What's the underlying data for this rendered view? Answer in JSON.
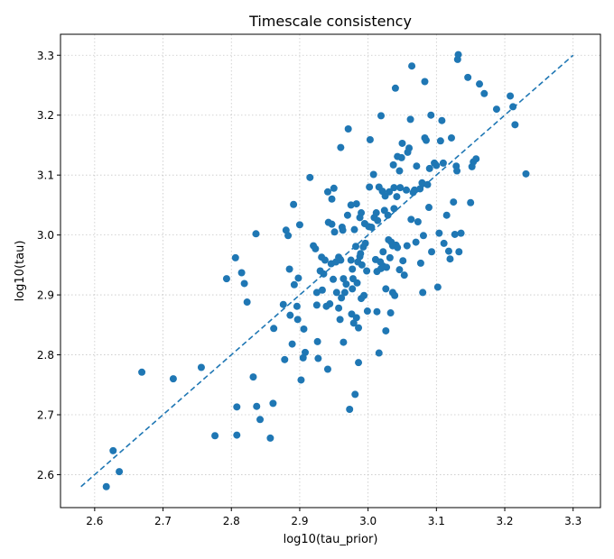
{
  "chart_data": {
    "type": "scatter",
    "title": "Timescale consistency",
    "xlabel": "log10(tau_prior)",
    "ylabel": "log10(tau)",
    "xlim": [
      2.55,
      3.34
    ],
    "ylim": [
      2.545,
      3.335
    ],
    "x_ticks": [
      "2.6",
      "2.7",
      "2.8",
      "2.9",
      "3.0",
      "3.1",
      "3.2",
      "3.3"
    ],
    "y_ticks": [
      "2.6",
      "2.7",
      "2.8",
      "2.9",
      "3.0",
      "3.1",
      "3.2",
      "3.3"
    ],
    "grid": true,
    "marker_color": "#1f77b4",
    "reference_line": {
      "x": [
        2.58,
        3.3
      ],
      "y": [
        2.58,
        3.3
      ],
      "style": "dashed",
      "color": "#1f77b4"
    },
    "points": [
      [
        2.617,
        2.58
      ],
      [
        2.627,
        2.64
      ],
      [
        2.636,
        2.605
      ],
      [
        2.669,
        2.771
      ],
      [
        2.715,
        2.76
      ],
      [
        2.756,
        2.779
      ],
      [
        2.776,
        2.665
      ],
      [
        2.793,
        2.927
      ],
      [
        2.806,
        2.962
      ],
      [
        2.808,
        2.713
      ],
      [
        2.808,
        2.666
      ],
      [
        2.815,
        2.937
      ],
      [
        2.819,
        2.919
      ],
      [
        2.823,
        2.888
      ],
      [
        2.832,
        2.763
      ],
      [
        2.836,
        3.002
      ],
      [
        2.837,
        2.714
      ],
      [
        2.842,
        2.692
      ],
      [
        2.857,
        2.661
      ],
      [
        2.861,
        2.719
      ],
      [
        2.862,
        2.844
      ],
      [
        2.876,
        2.884
      ],
      [
        2.878,
        2.792
      ],
      [
        2.88,
        3.008
      ],
      [
        2.883,
        2.999
      ],
      [
        2.885,
        2.943
      ],
      [
        2.886,
        2.866
      ],
      [
        2.889,
        2.818
      ],
      [
        2.891,
        3.051
      ],
      [
        2.892,
        2.917
      ],
      [
        2.896,
        2.881
      ],
      [
        2.897,
        2.859
      ],
      [
        2.898,
        2.928
      ],
      [
        2.9,
        3.017
      ],
      [
        2.902,
        2.758
      ],
      [
        2.905,
        2.795
      ],
      [
        2.906,
        2.843
      ],
      [
        2.908,
        2.804
      ],
      [
        2.915,
        3.096
      ],
      [
        2.92,
        2.982
      ],
      [
        2.923,
        2.977
      ],
      [
        2.925,
        2.904
      ],
      [
        2.925,
        2.883
      ],
      [
        2.926,
        2.822
      ],
      [
        2.927,
        2.794
      ],
      [
        2.93,
        2.94
      ],
      [
        2.932,
        2.963
      ],
      [
        2.933,
        2.908
      ],
      [
        2.935,
        2.935
      ],
      [
        2.937,
        2.958
      ],
      [
        2.939,
        2.881
      ],
      [
        2.941,
        3.072
      ],
      [
        2.941,
        2.776
      ],
      [
        2.942,
        3.021
      ],
      [
        2.944,
        2.885
      ],
      [
        2.946,
        2.952
      ],
      [
        2.947,
        3.018
      ],
      [
        2.947,
        3.06
      ],
      [
        2.949,
        2.926
      ],
      [
        2.95,
        3.078
      ],
      [
        2.951,
        3.005
      ],
      [
        2.953,
        2.955
      ],
      [
        2.954,
        2.904
      ],
      [
        2.957,
        2.878
      ],
      [
        2.957,
        2.963
      ],
      [
        2.959,
        2.859
      ],
      [
        2.96,
        2.958
      ],
      [
        2.96,
        3.146
      ],
      [
        2.961,
        2.895
      ],
      [
        2.962,
        3.013
      ],
      [
        2.963,
        3.008
      ],
      [
        2.964,
        2.927
      ],
      [
        2.964,
        2.821
      ],
      [
        2.966,
        2.904
      ],
      [
        2.968,
        2.918
      ],
      [
        2.97,
        3.033
      ],
      [
        2.971,
        3.177
      ],
      [
        2.973,
        2.709
      ],
      [
        2.975,
        2.958
      ],
      [
        2.975,
        3.05
      ],
      [
        2.976,
        2.868
      ],
      [
        2.977,
        2.91
      ],
      [
        2.977,
        2.943
      ],
      [
        2.978,
        2.927
      ],
      [
        2.979,
        2.853
      ],
      [
        2.98,
        3.009
      ],
      [
        2.981,
        2.734
      ],
      [
        2.982,
        2.981
      ],
      [
        2.983,
        3.052
      ],
      [
        2.983,
        2.862
      ],
      [
        2.984,
        2.92
      ],
      [
        2.985,
        2.955
      ],
      [
        2.986,
        2.845
      ],
      [
        2.986,
        2.787
      ],
      [
        2.988,
        2.964
      ],
      [
        2.988,
        3.029
      ],
      [
        2.989,
        2.969
      ],
      [
        2.99,
        3.037
      ],
      [
        2.99,
        2.894
      ],
      [
        2.991,
        2.95
      ],
      [
        2.993,
        2.98
      ],
      [
        2.994,
        2.899
      ],
      [
        2.995,
        3.019
      ],
      [
        2.996,
        2.986
      ],
      [
        2.998,
        2.94
      ],
      [
        2.999,
        2.873
      ],
      [
        3.001,
        3.014
      ],
      [
        3.002,
        3.08
      ],
      [
        3.003,
        3.159
      ],
      [
        3.005,
        3.013
      ],
      [
        3.008,
        3.101
      ],
      [
        3.009,
        3.029
      ],
      [
        3.011,
        2.959
      ],
      [
        3.012,
        3.037
      ],
      [
        3.013,
        2.872
      ],
      [
        3.013,
        2.939
      ],
      [
        3.014,
        3.024
      ],
      [
        3.016,
        2.803
      ],
      [
        3.016,
        3.08
      ],
      [
        3.018,
        2.955
      ],
      [
        3.019,
        2.944
      ],
      [
        3.019,
        3.199
      ],
      [
        3.021,
        3.073
      ],
      [
        3.022,
        2.972
      ],
      [
        3.022,
        2.948
      ],
      [
        3.024,
        3.041
      ],
      [
        3.025,
        3.065
      ],
      [
        3.026,
        2.91
      ],
      [
        3.026,
        2.84
      ],
      [
        3.027,
        2.946
      ],
      [
        3.029,
        3.033
      ],
      [
        3.03,
        2.992
      ],
      [
        3.031,
        3.072
      ],
      [
        3.032,
        2.962
      ],
      [
        3.033,
        2.87
      ],
      [
        3.034,
        2.988
      ],
      [
        3.036,
        2.904
      ],
      [
        3.036,
        2.982
      ],
      [
        3.037,
        3.117
      ],
      [
        3.038,
        3.044
      ],
      [
        3.038,
        3.079
      ],
      [
        3.039,
        2.899
      ],
      [
        3.04,
        3.245
      ],
      [
        3.041,
        2.983
      ],
      [
        3.042,
        3.064
      ],
      [
        3.043,
        2.979
      ],
      [
        3.043,
        3.131
      ],
      [
        3.046,
        3.107
      ],
      [
        3.046,
        2.942
      ],
      [
        3.047,
        3.079
      ],
      [
        3.049,
        3.129
      ],
      [
        3.05,
        3.153
      ],
      [
        3.051,
        2.957
      ],
      [
        3.053,
        2.933
      ],
      [
        3.056,
        3.075
      ],
      [
        3.057,
        2.982
      ],
      [
        3.058,
        3.138
      ],
      [
        3.06,
        3.145
      ],
      [
        3.062,
        3.193
      ],
      [
        3.063,
        3.026
      ],
      [
        3.064,
        3.282
      ],
      [
        3.066,
        3.071
      ],
      [
        3.068,
        3.075
      ],
      [
        3.07,
        2.988
      ],
      [
        3.071,
        3.115
      ],
      [
        3.073,
        3.022
      ],
      [
        3.076,
        3.077
      ],
      [
        3.077,
        2.953
      ],
      [
        3.079,
        3.087
      ],
      [
        3.08,
        2.904
      ],
      [
        3.081,
        2.999
      ],
      [
        3.083,
        3.162
      ],
      [
        3.083,
        3.256
      ],
      [
        3.085,
        3.158
      ],
      [
        3.087,
        3.084
      ],
      [
        3.089,
        3.046
      ],
      [
        3.09,
        3.111
      ],
      [
        3.092,
        3.2
      ],
      [
        3.093,
        2.972
      ],
      [
        3.097,
        3.12
      ],
      [
        3.1,
        3.116
      ],
      [
        3.102,
        2.913
      ],
      [
        3.104,
        3.003
      ],
      [
        3.106,
        3.157
      ],
      [
        3.108,
        3.191
      ],
      [
        3.11,
        3.12
      ],
      [
        3.111,
        2.986
      ],
      [
        3.115,
        3.033
      ],
      [
        3.118,
        2.973
      ],
      [
        3.12,
        2.96
      ],
      [
        3.122,
        3.162
      ],
      [
        3.125,
        3.055
      ],
      [
        3.127,
        3.001
      ],
      [
        3.129,
        3.115
      ],
      [
        3.13,
        3.107
      ],
      [
        3.131,
        3.293
      ],
      [
        3.132,
        3.301
      ],
      [
        3.133,
        2.972
      ],
      [
        3.136,
        3.003
      ],
      [
        3.146,
        3.263
      ],
      [
        3.15,
        3.054
      ],
      [
        3.152,
        3.114
      ],
      [
        3.154,
        3.122
      ],
      [
        3.158,
        3.127
      ],
      [
        3.163,
        3.252
      ],
      [
        3.17,
        3.236
      ],
      [
        3.188,
        3.21
      ],
      [
        3.208,
        3.232
      ],
      [
        3.212,
        3.214
      ],
      [
        3.215,
        3.184
      ],
      [
        3.231,
        3.102
      ]
    ]
  }
}
